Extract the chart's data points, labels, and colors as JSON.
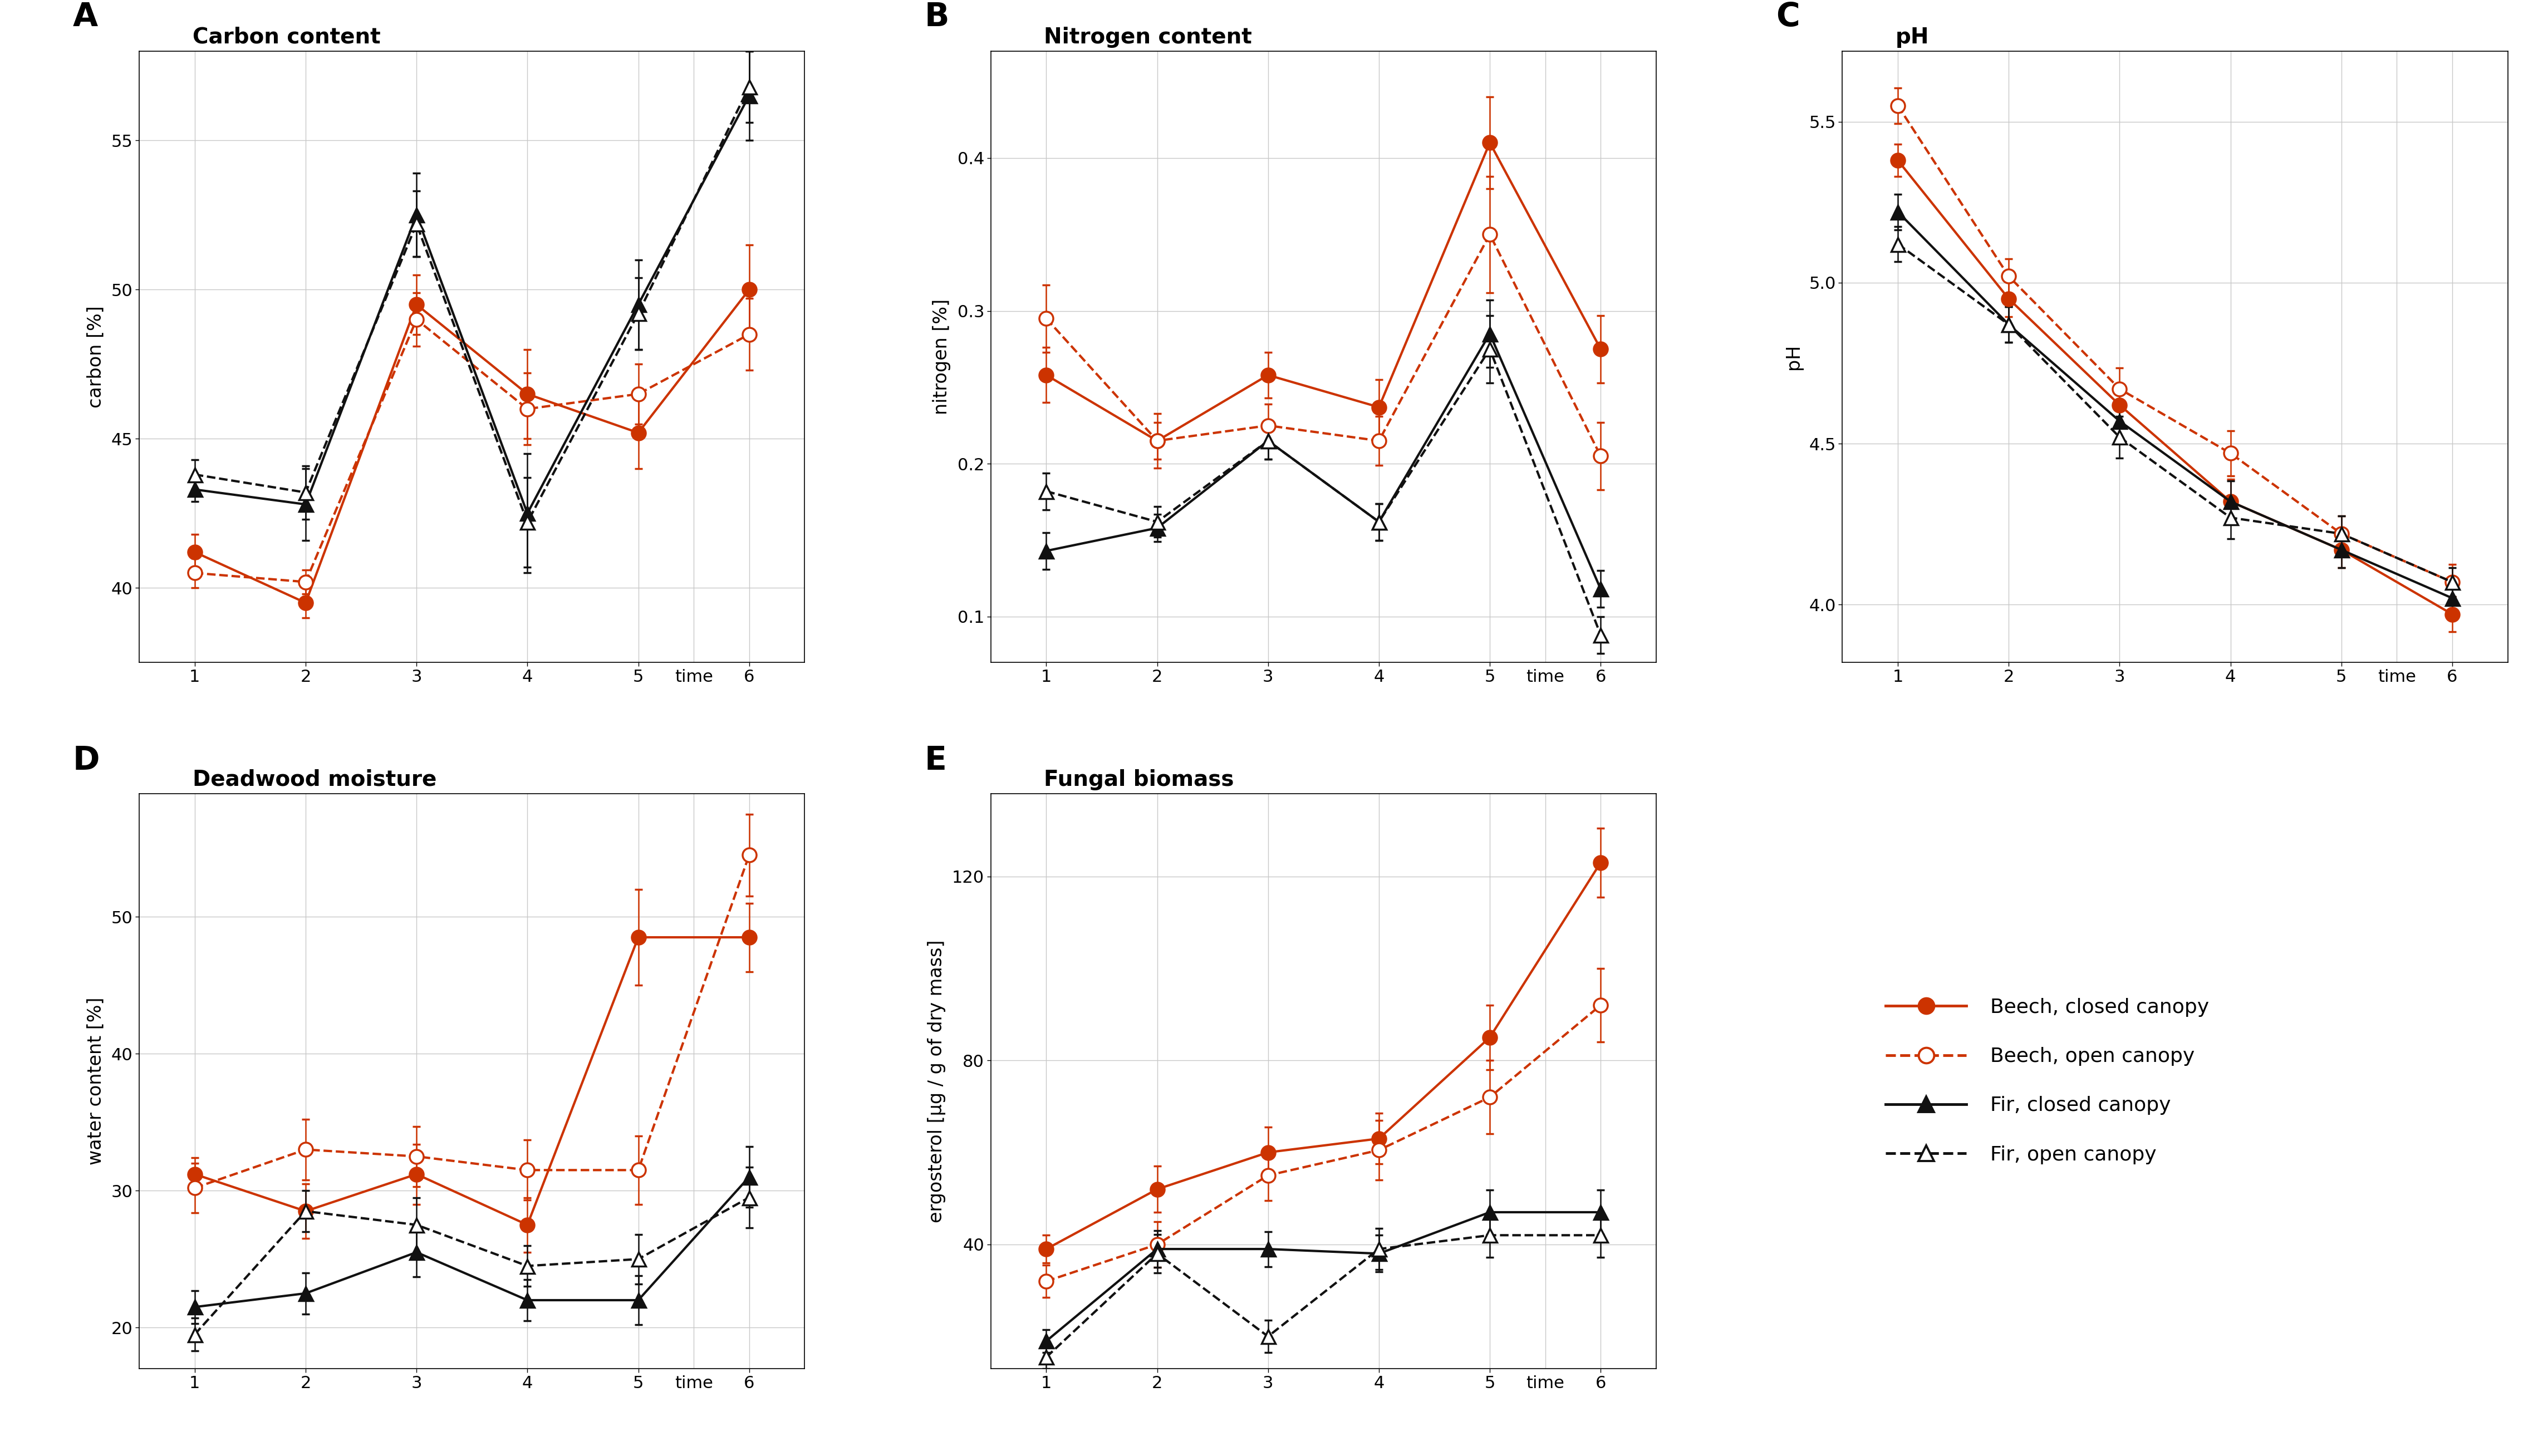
{
  "time": [
    1,
    2,
    3,
    4,
    5,
    6
  ],
  "panels": {
    "A": {
      "title": "Carbon content",
      "ylabel": "carbon [%]",
      "ylim": [
        37.5,
        58
      ],
      "yticks": [
        40,
        45,
        50,
        55
      ],
      "beech_closed": {
        "y": [
          41.2,
          39.5,
          49.5,
          46.5,
          45.2,
          50.0
        ],
        "yerr": [
          0.6,
          0.5,
          1.0,
          1.5,
          1.2,
          1.5
        ]
      },
      "beech_open": {
        "y": [
          40.5,
          40.2,
          49.0,
          46.0,
          46.5,
          48.5
        ],
        "yerr": [
          0.5,
          0.4,
          0.9,
          1.2,
          1.0,
          1.2
        ]
      },
      "fir_closed": {
        "y": [
          43.3,
          42.8,
          52.5,
          42.5,
          49.5,
          56.5
        ],
        "yerr": [
          0.4,
          1.2,
          1.4,
          2.0,
          1.5,
          1.5
        ]
      },
      "fir_open": {
        "y": [
          43.8,
          43.2,
          52.2,
          42.2,
          49.2,
          56.8
        ],
        "yerr": [
          0.5,
          0.9,
          1.1,
          1.5,
          1.2,
          1.2
        ]
      }
    },
    "B": {
      "title": "Nitrogen content",
      "ylabel": "nitrogen [%]",
      "ylim": [
        0.07,
        0.47
      ],
      "yticks": [
        0.1,
        0.2,
        0.3,
        0.4
      ],
      "beech_closed": {
        "y": [
          0.258,
          0.215,
          0.258,
          0.237,
          0.41,
          0.275
        ],
        "yerr": [
          0.018,
          0.012,
          0.015,
          0.018,
          0.03,
          0.022
        ]
      },
      "beech_open": {
        "y": [
          0.295,
          0.215,
          0.225,
          0.215,
          0.35,
          0.205
        ],
        "yerr": [
          0.022,
          0.018,
          0.014,
          0.016,
          0.038,
          0.022
        ]
      },
      "fir_closed": {
        "y": [
          0.143,
          0.158,
          0.215,
          0.162,
          0.285,
          0.118
        ],
        "yerr": [
          0.012,
          0.009,
          0.012,
          0.012,
          0.022,
          0.012
        ]
      },
      "fir_open": {
        "y": [
          0.182,
          0.162,
          0.215,
          0.162,
          0.275,
          0.088
        ],
        "yerr": [
          0.012,
          0.01,
          0.012,
          0.012,
          0.022,
          0.012
        ]
      }
    },
    "C": {
      "title": "pH",
      "ylabel": "pH",
      "ylim": [
        3.82,
        5.72
      ],
      "yticks": [
        4.0,
        4.5,
        5.0,
        5.5
      ],
      "beech_closed": {
        "y": [
          5.38,
          4.95,
          4.62,
          4.32,
          4.17,
          3.97
        ],
        "yerr": [
          0.05,
          0.055,
          0.065,
          0.07,
          0.055,
          0.055
        ]
      },
      "beech_open": {
        "y": [
          5.55,
          5.02,
          4.67,
          4.47,
          4.22,
          4.07
        ],
        "yerr": [
          0.055,
          0.055,
          0.065,
          0.07,
          0.055,
          0.055
        ]
      },
      "fir_closed": {
        "y": [
          5.22,
          4.87,
          4.57,
          4.32,
          4.17,
          4.02
        ],
        "yerr": [
          0.055,
          0.055,
          0.065,
          0.065,
          0.055,
          0.045
        ]
      },
      "fir_open": {
        "y": [
          5.12,
          4.87,
          4.52,
          4.27,
          4.22,
          4.07
        ],
        "yerr": [
          0.055,
          0.055,
          0.065,
          0.065,
          0.055,
          0.045
        ]
      }
    },
    "D": {
      "title": "Deadwood moisture",
      "ylabel": "water content [%]",
      "ylim": [
        17,
        59
      ],
      "yticks": [
        20,
        30,
        40,
        50
      ],
      "beech_closed": {
        "y": [
          31.2,
          28.5,
          31.2,
          27.5,
          48.5,
          48.5
        ],
        "yerr": [
          1.2,
          2.0,
          2.2,
          2.0,
          3.5,
          2.5
        ]
      },
      "beech_open": {
        "y": [
          30.2,
          33.0,
          32.5,
          31.5,
          31.5,
          54.5
        ],
        "yerr": [
          1.8,
          2.2,
          2.2,
          2.2,
          2.5,
          3.0
        ]
      },
      "fir_closed": {
        "y": [
          21.5,
          22.5,
          25.5,
          22.0,
          22.0,
          31.0
        ],
        "yerr": [
          1.2,
          1.5,
          1.8,
          1.5,
          1.8,
          2.2
        ]
      },
      "fir_open": {
        "y": [
          19.5,
          28.5,
          27.5,
          24.5,
          25.0,
          29.5
        ],
        "yerr": [
          1.2,
          1.5,
          2.0,
          1.5,
          1.8,
          2.2
        ]
      }
    },
    "E": {
      "title": "Fungal biomass",
      "ylabel": "ergosterol [µg / g of dry mass]",
      "ylim": [
        13,
        138
      ],
      "yticks": [
        40,
        80,
        120
      ],
      "beech_closed": {
        "y": [
          39.0,
          52.0,
          60.0,
          63.0,
          85.0,
          123.0
        ],
        "yerr": [
          3.0,
          5.0,
          5.5,
          5.5,
          7.0,
          7.5
        ]
      },
      "beech_open": {
        "y": [
          32.0,
          40.0,
          55.0,
          60.5,
          72.0,
          92.0
        ],
        "yerr": [
          3.5,
          5.0,
          5.5,
          6.5,
          8.0,
          8.0
        ]
      },
      "fir_closed": {
        "y": [
          19.0,
          39.0,
          39.0,
          38.0,
          47.0,
          47.0
        ],
        "yerr": [
          2.5,
          4.0,
          3.8,
          4.0,
          4.8,
          4.8
        ]
      },
      "fir_open": {
        "y": [
          15.5,
          38.0,
          20.0,
          39.0,
          42.0,
          42.0
        ],
        "yerr": [
          2.5,
          4.2,
          3.5,
          4.5,
          4.8,
          4.8
        ]
      }
    }
  },
  "colors": {
    "beech": "#CC3300",
    "fir": "#111111"
  },
  "legend": [
    {
      "label": "Beech, closed canopy",
      "color": "#CC3300",
      "linestyle": "-",
      "marker": "o",
      "filled": true
    },
    {
      "label": "Beech, open canopy",
      "color": "#CC3300",
      "linestyle": "--",
      "marker": "o",
      "filled": false
    },
    {
      "label": "Fir, closed canopy",
      "color": "#111111",
      "linestyle": "-",
      "marker": "^",
      "filled": true
    },
    {
      "label": "Fir, open canopy",
      "color": "#111111",
      "linestyle": "--",
      "marker": "^",
      "filled": false
    }
  ]
}
